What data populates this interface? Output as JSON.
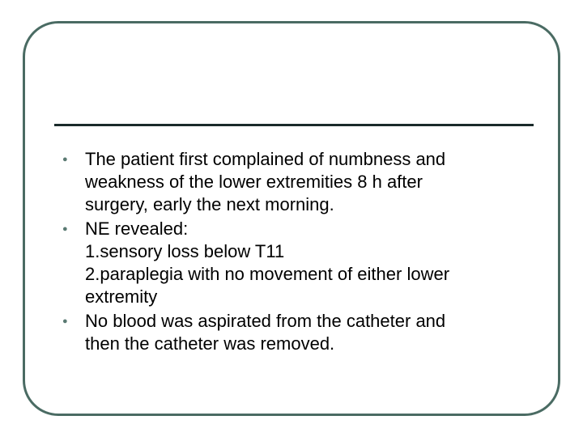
{
  "slide": {
    "frame": {
      "border_color": "#4a6b63",
      "border_width": 3,
      "border_radius": 44,
      "background_color": "#ffffff"
    },
    "rule": {
      "color": "#1a2a2a",
      "width": 3
    },
    "text_color": "#000000",
    "bullet_color": "#5a7a72",
    "body_fontsize": 22,
    "bullets": [
      {
        "lines": [
          "The patient first complained of numbness and",
          "weakness of the lower extremities 8 h after",
          "surgery, early the next morning."
        ]
      },
      {
        "lines": [
          "NE revealed:",
          "1.sensory loss below T11",
          "2.paraplegia with no movement of either lower",
          "extremity"
        ]
      },
      {
        "lines": [
          "No blood was aspirated from the catheter and",
          "then the catheter was removed."
        ]
      }
    ]
  }
}
